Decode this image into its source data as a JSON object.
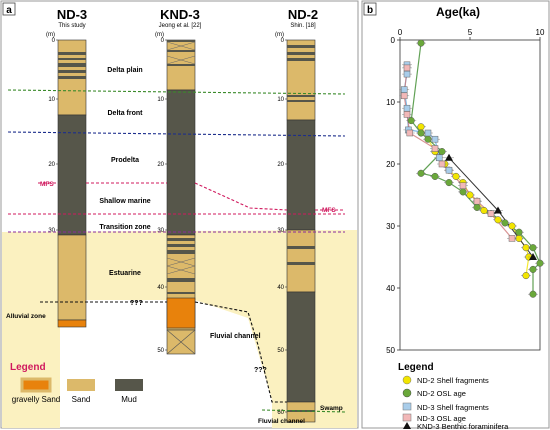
{
  "panel_a": {
    "label": "a",
    "cores": [
      {
        "name": "ND-3",
        "source": "This study"
      },
      {
        "name": "KND-3",
        "source": "Jeong et al. [22]"
      },
      {
        "name": "ND-2",
        "source": "Shin. [18]"
      }
    ],
    "depth_unit": "(m)",
    "zones": [
      {
        "label": "Delta plain"
      },
      {
        "label": "Delta front"
      },
      {
        "label": "Prodelta"
      },
      {
        "label": "Shallow marine"
      },
      {
        "label": "Transition zone"
      },
      {
        "label": "Estuarine"
      }
    ],
    "mfs_left": "MFS",
    "mfs_right": "MFS",
    "alluvial": "Alluvial zone",
    "fluvial_channel_1": "Fluvial channel",
    "fluvial_channel_2": "Fluvial channel",
    "swamp": "Swamp",
    "unknown_1": "???",
    "unknown_2": "???",
    "legend": {
      "title": "Legend",
      "items": [
        {
          "label": "gravelly Sand",
          "color": "#e8820c"
        },
        {
          "label": "Sand",
          "color": "#dcb96a"
        },
        {
          "label": "Mud",
          "color": "#56564a"
        }
      ]
    },
    "colors": {
      "sand": "#dcb96a",
      "mud": "#56564a",
      "gravel": "#e8820c",
      "shade": "#fbf1c0"
    }
  },
  "panel_b": {
    "label": "b",
    "chart_data": {
      "type": "scatter",
      "title": "Age(ka)",
      "x_ticks": [
        "0",
        "5",
        "10"
      ],
      "y_ticks": [
        "0",
        "10",
        "20",
        "30",
        "40",
        "50"
      ],
      "xlim": [
        0,
        10
      ],
      "ylim": [
        0,
        50
      ],
      "y_inverted": true,
      "series": [
        {
          "name": "ND-2 Shell fragments",
          "marker": "circle",
          "color": "#f2e500",
          "points": [
            [
              1.5,
              14
            ],
            [
              2.5,
              18
            ],
            [
              3.2,
              20
            ],
            [
              3.5,
              21
            ],
            [
              4.0,
              22
            ],
            [
              4.5,
              23
            ],
            [
              5.0,
              25
            ],
            [
              5.5,
              26
            ],
            [
              6.0,
              27.5
            ],
            [
              7.0,
              29
            ],
            [
              8.0,
              30
            ],
            [
              8.5,
              32
            ],
            [
              9.0,
              33.5
            ],
            [
              9.2,
              35
            ],
            [
              9.0,
              38
            ]
          ]
        },
        {
          "name": "ND-2 OSL age",
          "marker": "circle",
          "color": "#6aa83a",
          "points": [
            [
              1.5,
              0.5
            ],
            [
              0.8,
              13
            ],
            [
              1.5,
              15
            ],
            [
              2.0,
              16
            ],
            [
              3.0,
              18
            ],
            [
              1.5,
              21.5
            ],
            [
              2.5,
              22
            ],
            [
              3.5,
              23
            ],
            [
              4.5,
              24.5
            ],
            [
              5.5,
              27
            ],
            [
              6.5,
              28
            ],
            [
              7.5,
              29.5
            ],
            [
              8.5,
              31
            ],
            [
              9.5,
              33.5
            ],
            [
              10.0,
              36
            ],
            [
              9.5,
              37
            ],
            [
              9.5,
              41
            ]
          ]
        },
        {
          "name": "ND-3 Shell fragments",
          "marker": "square",
          "color": "#a9cdea",
          "points": [
            [
              0.5,
              4
            ],
            [
              0.5,
              5.5
            ],
            [
              0.3,
              8
            ],
            [
              0.5,
              11
            ],
            [
              0.6,
              14.5
            ],
            [
              2.0,
              15
            ],
            [
              2.5,
              16
            ],
            [
              2.8,
              19
            ],
            [
              3.5,
              21
            ]
          ]
        },
        {
          "name": "ND-3 OSL age",
          "marker": "square",
          "color": "#f2b8b8",
          "points": [
            [
              0.5,
              4.5
            ],
            [
              0.3,
              9
            ],
            [
              0.5,
              12
            ],
            [
              0.7,
              15
            ],
            [
              2.5,
              17.5
            ],
            [
              3.0,
              20
            ],
            [
              4.5,
              23.5
            ],
            [
              5.5,
              26
            ],
            [
              6.5,
              28
            ],
            [
              8.0,
              32
            ]
          ]
        },
        {
          "name": "KND-3 Benthic foraminifera",
          "marker": "triangle",
          "color": "#111111",
          "points": [
            [
              3.5,
              19
            ],
            [
              7.0,
              27.5
            ],
            [
              9.5,
              35
            ]
          ]
        }
      ]
    },
    "legend_title": "Legend"
  }
}
